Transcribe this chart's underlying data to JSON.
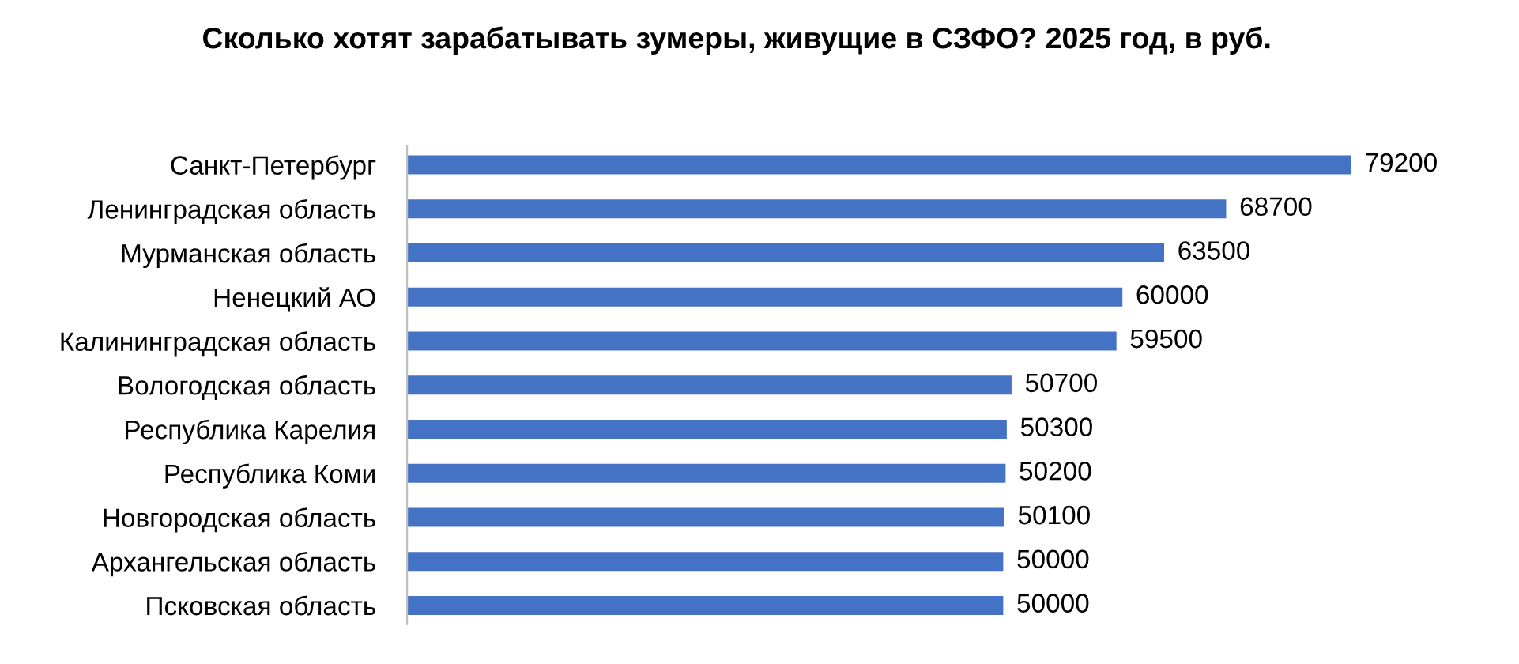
{
  "chart_data": {
    "type": "bar",
    "orientation": "horizontal",
    "title": "Сколько хотят зарабатывать зумеры, живущие в СЗФО? 2025 год, в руб.",
    "categories": [
      "Санкт-Петербург",
      "Ленинградская область",
      "Мурманская область",
      "Ненецкий АО",
      "Калининградская область",
      "Вологодская область",
      "Республика Карелия",
      "Республика Коми",
      "Новгородская область",
      "Архангельская область",
      "Псковская область"
    ],
    "values": [
      79200,
      68700,
      63500,
      60000,
      59500,
      50700,
      50300,
      50200,
      50100,
      50000,
      50000
    ],
    "color": "#4472c4",
    "data_labels": true,
    "grid": false,
    "legend": false
  }
}
